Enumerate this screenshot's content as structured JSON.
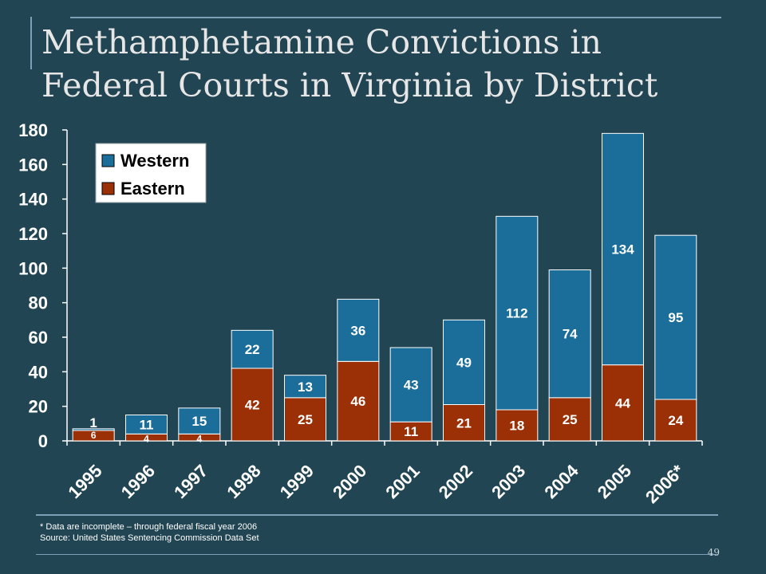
{
  "title": "Methamphetamine Convictions in Federal Courts in Virginia by District",
  "footnotes": {
    "note": "* Data are incomplete – through federal fiscal year 2006",
    "source": "Source:  United States Sentencing Commission Data Set"
  },
  "page_number": "49",
  "colors": {
    "background": "#214552",
    "western": "#1c6e9a",
    "eastern": "#9b3006",
    "axis_text": "#ffffff"
  },
  "chart_data": {
    "type": "bar",
    "stacked": true,
    "categories": [
      "1995",
      "1996",
      "1997",
      "1998",
      "1999",
      "2000",
      "2001",
      "2002",
      "2003",
      "2004",
      "2005",
      "2006*"
    ],
    "series": [
      {
        "name": "Eastern",
        "values": [
          6,
          4,
          4,
          42,
          25,
          46,
          11,
          21,
          18,
          25,
          44,
          24
        ],
        "color": "#9b3006"
      },
      {
        "name": "Western",
        "values": [
          1,
          11,
          15,
          22,
          13,
          36,
          43,
          49,
          112,
          74,
          134,
          95
        ],
        "color": "#1c6e9a"
      }
    ],
    "yticks": [
      0,
      20,
      40,
      60,
      80,
      100,
      120,
      140,
      160,
      180
    ],
    "ylim": [
      0,
      180
    ],
    "legend": {
      "position": "top-left",
      "entries": [
        "Western",
        "Eastern"
      ]
    },
    "grid": false
  }
}
